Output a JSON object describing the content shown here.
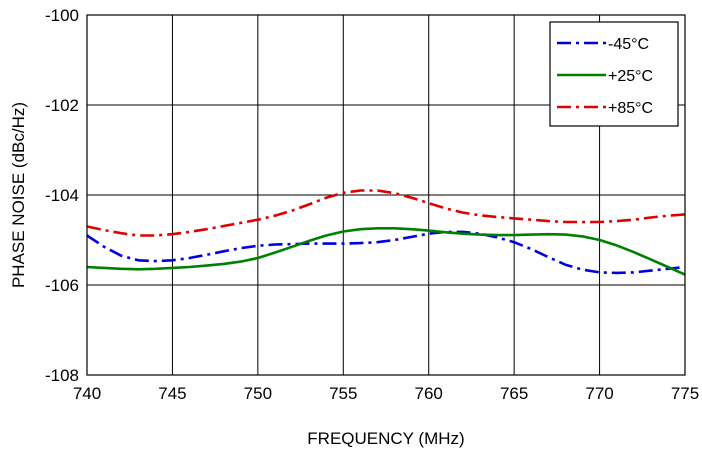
{
  "chart_data": {
    "type": "line",
    "xlabel": "FREQUENCY (MHz)",
    "ylabel": "PHASE NOISE  (dBc/Hz)",
    "xlim": [
      740,
      775
    ],
    "ylim": [
      -108,
      -100
    ],
    "xticks": [
      740,
      745,
      750,
      755,
      760,
      765,
      770,
      775
    ],
    "yticks": [
      -108,
      -106,
      -104,
      -102,
      -100
    ],
    "x_tick_labels": [
      "740",
      "745",
      "750",
      "755",
      "760",
      "765",
      "770",
      "775"
    ],
    "y_tick_labels": [
      "-108",
      "-106",
      "-104",
      "-102",
      "-100"
    ],
    "grid": true,
    "legend_position": "top-right",
    "series": [
      {
        "name": "-45°C",
        "color": "#0000e0",
        "dash": "dash-dot",
        "x": [
          740,
          741,
          742,
          743,
          744,
          745,
          746,
          747,
          748,
          749,
          750,
          751,
          752,
          753,
          754,
          755,
          756,
          757,
          758,
          759,
          760,
          761,
          762,
          763,
          764,
          765,
          766,
          767,
          768,
          769,
          770,
          771,
          772,
          773,
          774,
          775
        ],
        "y": [
          -104.9,
          -105.15,
          -105.35,
          -105.45,
          -105.47,
          -105.45,
          -105.4,
          -105.33,
          -105.25,
          -105.18,
          -105.13,
          -105.1,
          -105.09,
          -105.08,
          -105.08,
          -105.08,
          -105.07,
          -105.05,
          -105.0,
          -104.93,
          -104.86,
          -104.82,
          -104.82,
          -104.86,
          -104.94,
          -105.05,
          -105.2,
          -105.38,
          -105.55,
          -105.66,
          -105.72,
          -105.73,
          -105.72,
          -105.68,
          -105.64,
          -105.6
        ]
      },
      {
        "name": "+25°C",
        "color": "#008000",
        "dash": "solid",
        "x": [
          740,
          741,
          742,
          743,
          744,
          745,
          746,
          747,
          748,
          749,
          750,
          751,
          752,
          753,
          754,
          755,
          756,
          757,
          758,
          759,
          760,
          761,
          762,
          763,
          764,
          765,
          766,
          767,
          768,
          769,
          770,
          771,
          772,
          773,
          774,
          775
        ],
        "y": [
          -105.6,
          -105.62,
          -105.64,
          -105.65,
          -105.64,
          -105.62,
          -105.6,
          -105.57,
          -105.53,
          -105.48,
          -105.4,
          -105.28,
          -105.15,
          -105.02,
          -104.9,
          -104.81,
          -104.76,
          -104.74,
          -104.74,
          -104.76,
          -104.79,
          -104.83,
          -104.86,
          -104.88,
          -104.89,
          -104.89,
          -104.88,
          -104.87,
          -104.88,
          -104.92,
          -105.0,
          -105.12,
          -105.27,
          -105.43,
          -105.6,
          -105.77
        ]
      },
      {
        "name": "+85°C",
        "color": "#e00000",
        "dash": "dash-dot",
        "x": [
          740,
          741,
          742,
          743,
          744,
          745,
          746,
          747,
          748,
          749,
          750,
          751,
          752,
          753,
          754,
          755,
          756,
          757,
          758,
          759,
          760,
          761,
          762,
          763,
          764,
          765,
          766,
          767,
          768,
          769,
          770,
          771,
          772,
          773,
          774,
          775
        ],
        "y": [
          -104.7,
          -104.78,
          -104.85,
          -104.9,
          -104.9,
          -104.87,
          -104.82,
          -104.76,
          -104.69,
          -104.62,
          -104.55,
          -104.46,
          -104.35,
          -104.21,
          -104.06,
          -103.95,
          -103.9,
          -103.9,
          -103.96,
          -104.06,
          -104.18,
          -104.3,
          -104.39,
          -104.45,
          -104.49,
          -104.52,
          -104.55,
          -104.58,
          -104.6,
          -104.6,
          -104.6,
          -104.58,
          -104.55,
          -104.5,
          -104.46,
          -104.43
        ]
      }
    ]
  }
}
